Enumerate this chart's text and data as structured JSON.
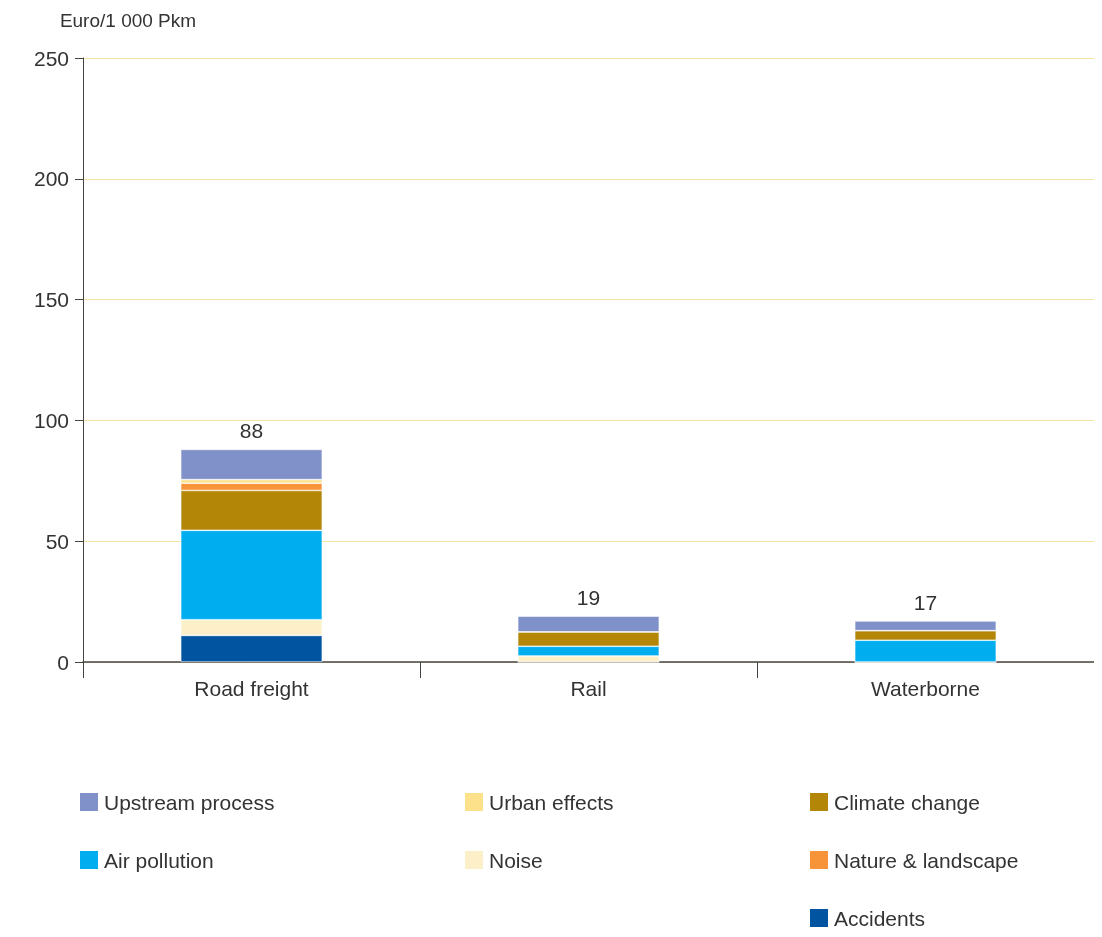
{
  "chart_data": {
    "type": "bar",
    "stacked": true,
    "ylabel": "Euro/1 000 Pkm",
    "categories": [
      "Road freight",
      "Rail",
      "Waterborne"
    ],
    "series": [
      {
        "name": "Accidents",
        "color": "#0054a0",
        "values": [
          11,
          0,
          0
        ]
      },
      {
        "name": "Noise",
        "color": "#fdf0c8",
        "values": [
          6.5,
          2.5,
          0
        ]
      },
      {
        "name": "Air pollution",
        "color": "#00aeef",
        "values": [
          37,
          4,
          9
        ]
      },
      {
        "name": "Climate change",
        "color": "#b38608",
        "values": [
          16.5,
          6,
          4
        ]
      },
      {
        "name": "Nature & landscape",
        "color": "#f7943a",
        "values": [
          3,
          0,
          0
        ]
      },
      {
        "name": "Urban effects",
        "color": "#fde08a",
        "values": [
          1.5,
          0,
          0
        ]
      },
      {
        "name": "Upstream process",
        "color": "#8090c8",
        "values": [
          12.5,
          6.5,
          4
        ]
      }
    ],
    "totals": [
      "88",
      "19",
      "17"
    ],
    "ylim": [
      0,
      250
    ],
    "yticks": [
      0,
      50,
      100,
      150,
      200,
      250
    ],
    "grid": "y",
    "legend": "bottom"
  }
}
